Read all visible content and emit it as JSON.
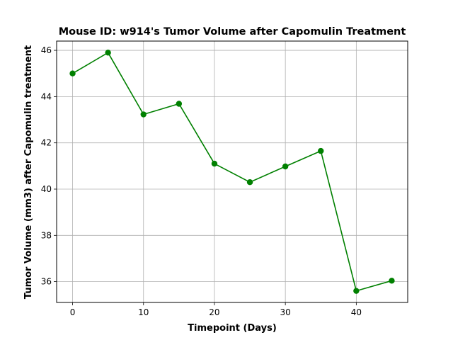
{
  "chart_data": {
    "type": "line",
    "title": "Mouse ID: w914's Tumor Volume after Capomulin Treatment",
    "xlabel": "Timepoint (Days)",
    "ylabel": "Tumor Volume (mm3) after Capomulin treatment",
    "x": [
      0,
      5,
      10,
      15,
      20,
      25,
      30,
      35,
      40,
      45
    ],
    "y": [
      45.0,
      45.9,
      43.23,
      43.69,
      41.1,
      40.3,
      40.98,
      41.65,
      35.6,
      36.04
    ],
    "xlim": [
      -2.25,
      47.25
    ],
    "ylim": [
      35.1,
      46.4
    ],
    "xticks": [
      0,
      10,
      20,
      30,
      40
    ],
    "yticks": [
      36,
      38,
      40,
      42,
      44,
      46
    ],
    "grid": true,
    "line_color": "#008000",
    "marker": "circle"
  }
}
